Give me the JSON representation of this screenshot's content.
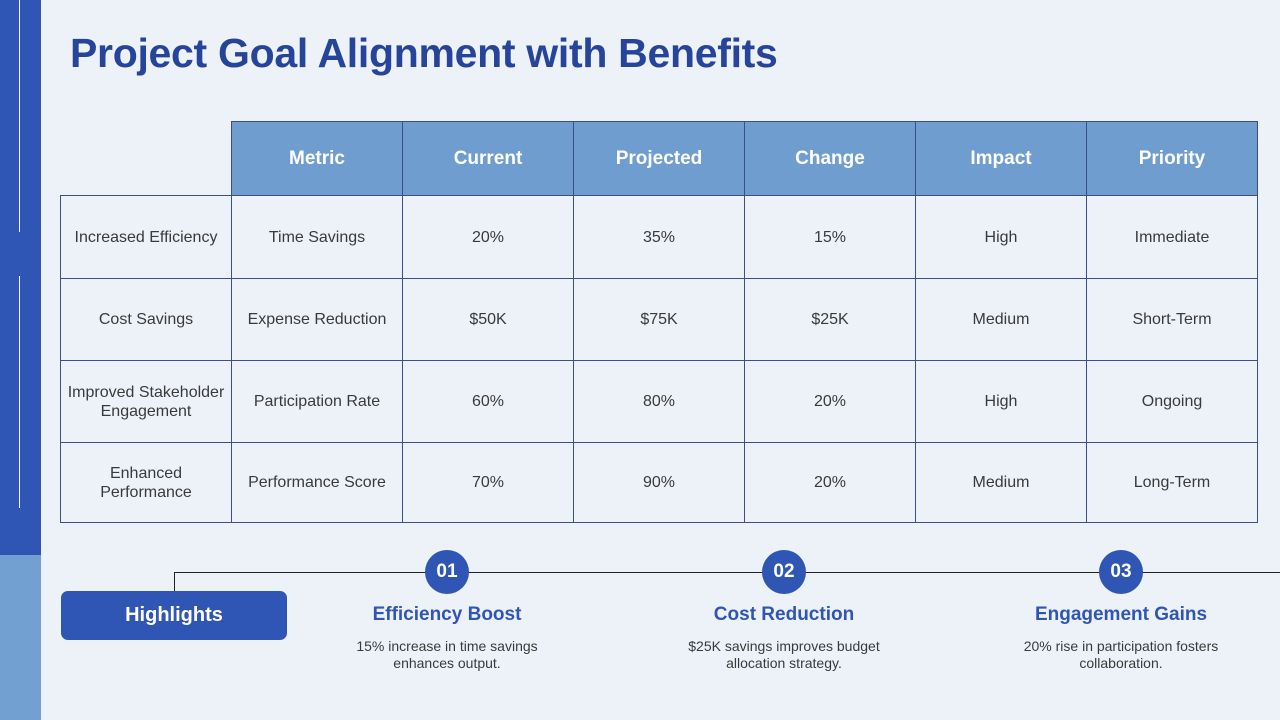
{
  "title": "Project Goal Alignment with Benefits",
  "table": {
    "headers": [
      "Metric",
      "Current",
      "Projected",
      "Change",
      "Impact",
      "Priority"
    ],
    "rows": [
      {
        "label": "Increased Efficiency",
        "cells": [
          "Time Savings",
          "20%",
          "35%",
          "15%",
          "High",
          "Immediate"
        ]
      },
      {
        "label": "Cost Savings",
        "cells": [
          "Expense Reduction",
          "$50K",
          "$75K",
          "$25K",
          "Medium",
          "Short-Term"
        ]
      },
      {
        "label": "Improved Stakeholder Engagement",
        "cells": [
          "Participation Rate",
          "60%",
          "80%",
          "20%",
          "High",
          "Ongoing"
        ]
      },
      {
        "label": "Enhanced Performance",
        "cells": [
          "Performance Score",
          "70%",
          "90%",
          "20%",
          "Medium",
          "Long-Term"
        ]
      }
    ]
  },
  "highlights": {
    "label": "Highlights",
    "items": [
      {
        "number": "01",
        "title": "Efficiency Boost",
        "description": "15% increase in time savings enhances output."
      },
      {
        "number": "02",
        "title": "Cost Reduction",
        "description": "$25K savings improves budget allocation strategy."
      },
      {
        "number": "03",
        "title": "Engagement Gains",
        "description": "20% rise in participation fosters collaboration."
      }
    ]
  },
  "colors": {
    "background": "#edf1f8",
    "primary": "#3056b5",
    "header_fill": "#6f9dd0",
    "title": "#26459a"
  }
}
